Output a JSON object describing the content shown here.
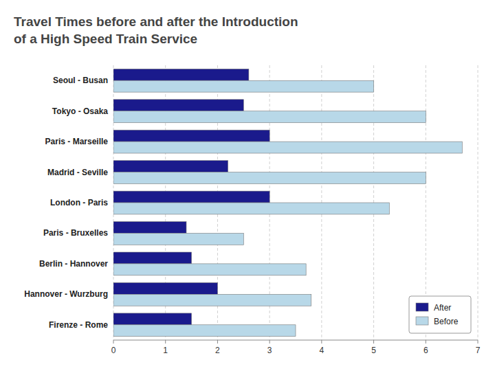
{
  "chart_data": {
    "type": "bar",
    "orientation": "horizontal",
    "title": "Travel Times before and after the Introduction\nof a High Speed Train Service",
    "categories": [
      "Seoul - Busan",
      "Tokyo - Osaka",
      "Paris - Marseille",
      "Madrid - Seville",
      "London - Paris",
      "Paris - Bruxelles",
      "Berlin - Hannover",
      "Hannover - Wurzburg",
      "Firenze - Rome"
    ],
    "series": [
      {
        "name": "After",
        "color": "#1a1a8c",
        "values": [
          2.6,
          2.5,
          3.0,
          2.2,
          3.0,
          1.4,
          1.5,
          2.0,
          1.5
        ]
      },
      {
        "name": "Before",
        "color": "#b8d8e8",
        "values": [
          5.0,
          6.0,
          6.7,
          6.0,
          5.3,
          2.5,
          3.7,
          3.8,
          3.5
        ]
      }
    ],
    "xlim": [
      0,
      7
    ],
    "xticks": [
      0,
      1,
      2,
      3,
      4,
      5,
      6,
      7
    ],
    "grid": true,
    "legend": "lower-right"
  }
}
